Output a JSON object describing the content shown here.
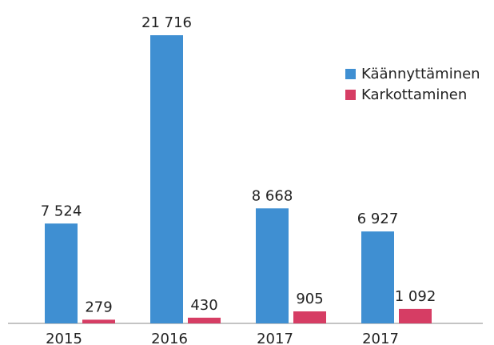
{
  "chart_data": {
    "type": "bar",
    "categories": [
      "2015",
      "2016",
      "2017",
      "2017"
    ],
    "series": [
      {
        "name": "Käännyttäminen",
        "color": "#3f8fd2",
        "values": [
          7524,
          21716,
          8668,
          6927
        ],
        "value_labels": [
          "7 524",
          "21 716",
          "8 668",
          "6 927"
        ]
      },
      {
        "name": "Karkottaminen",
        "color": "#d63d64",
        "values": [
          279,
          430,
          905,
          1092
        ],
        "value_labels": [
          "279",
          "430",
          "905",
          "1 092"
        ]
      }
    ],
    "legend": "upper right"
  }
}
